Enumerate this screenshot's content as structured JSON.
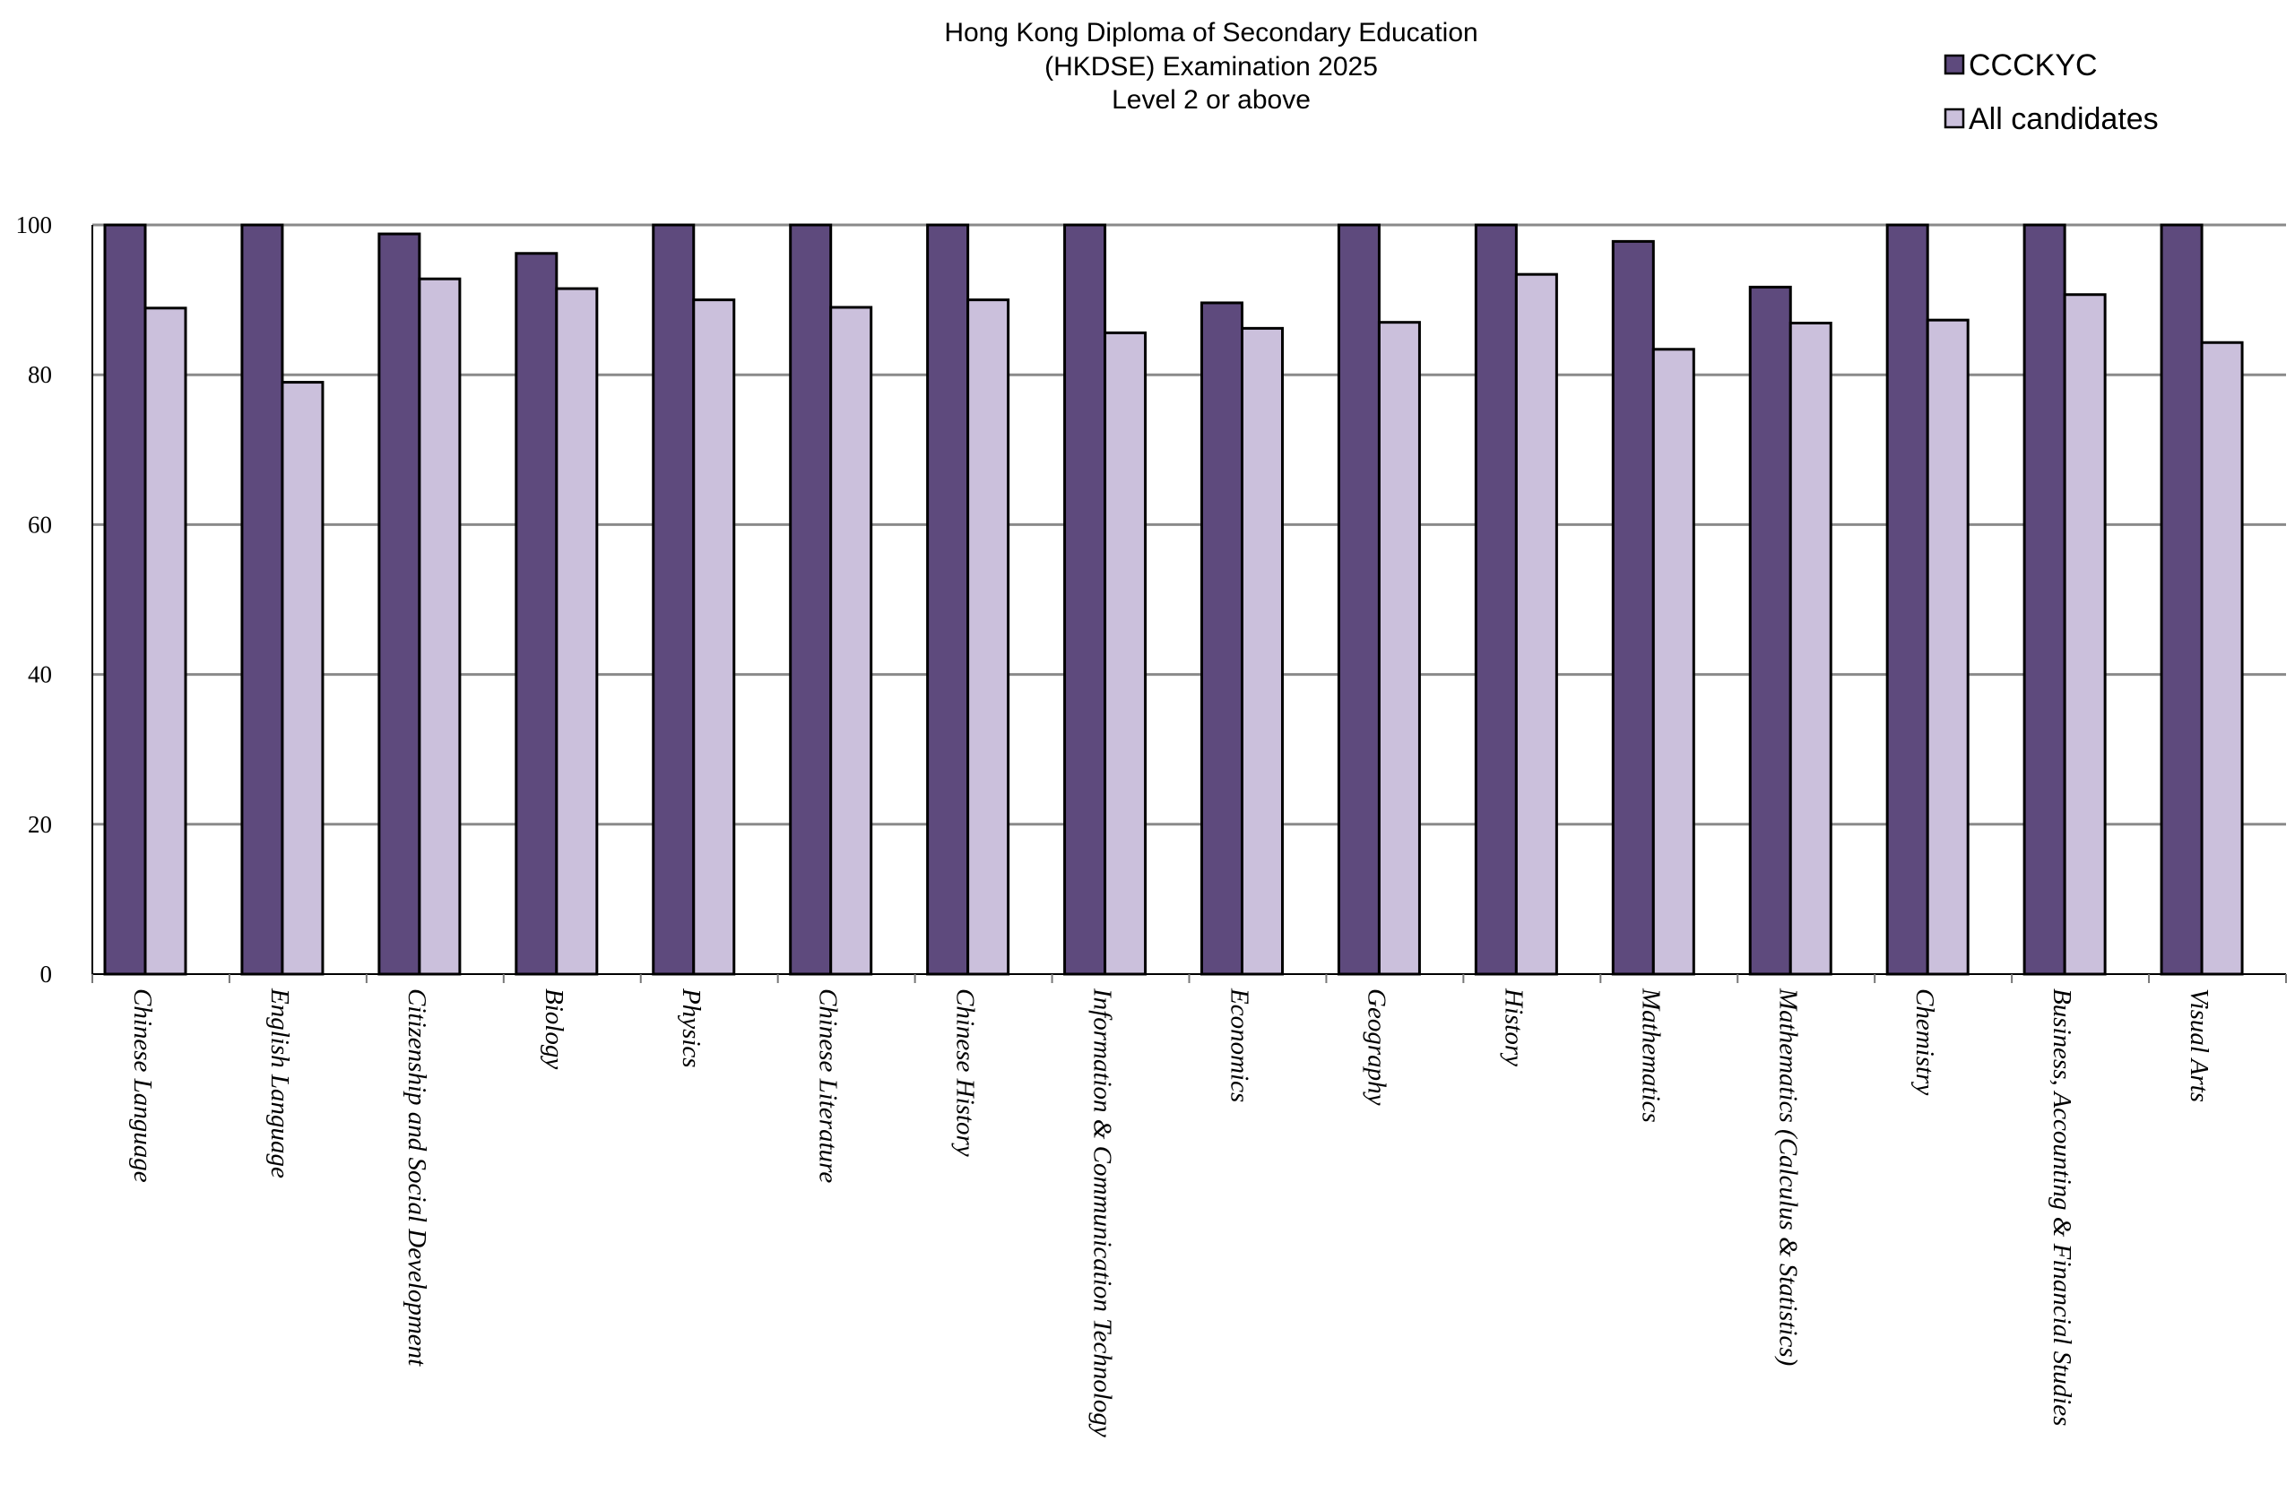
{
  "chart_data": {
    "type": "bar",
    "title": [
      "Hong Kong Diploma of Secondary Education",
      "(HKDSE) Examination 2025",
      "Level 2 or above"
    ],
    "xlabel": "",
    "ylabel": "",
    "ylim": [
      0,
      100
    ],
    "yticks": [
      "0",
      "20",
      "40",
      "60",
      "80",
      "100"
    ],
    "grid": true,
    "legend_position": "top-right",
    "categories": [
      "Chinese Language",
      "English Language",
      "Citizenship and Social Development",
      "Biology",
      "Physics",
      "Chinese Literature",
      "Chinese History",
      "Information & Communication Technology",
      "Economics",
      "Geography",
      "History",
      "Mathematics",
      "Mathematics (Calculus & Statistics)",
      "Chemistry",
      "Business, Accounting & Financial Studies",
      "Visual Arts"
    ],
    "series": [
      {
        "name": "CCCKYC",
        "color": "#5e4a7d",
        "values": [
          100,
          100,
          98.8,
          96.2,
          100,
          100,
          100,
          100,
          89.6,
          100,
          100,
          97.8,
          91.7,
          100,
          100,
          100
        ]
      },
      {
        "name": "All candidates",
        "color": "#cbc0dc",
        "values": [
          88.9,
          79.0,
          92.8,
          91.5,
          90.0,
          89.0,
          90.0,
          85.6,
          86.2,
          87.0,
          93.4,
          83.4,
          86.9,
          87.3,
          90.7,
          84.3
        ]
      }
    ]
  }
}
